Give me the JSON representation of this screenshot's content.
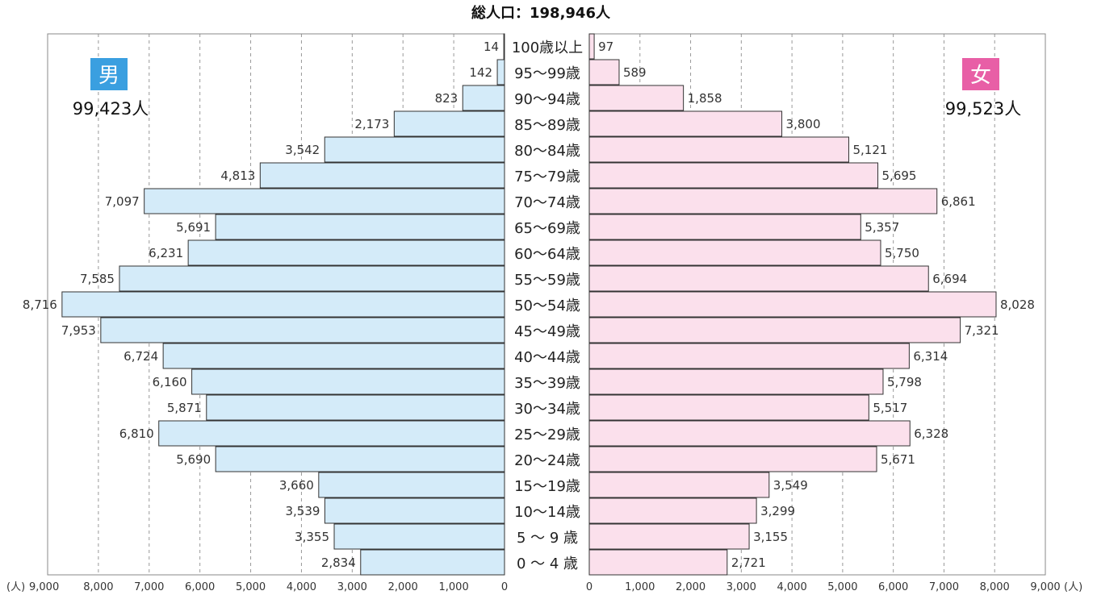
{
  "chart_data": {
    "type": "bar",
    "title": "総人口：198,946人",
    "unit": "(人)",
    "categories": [
      "100歳以上",
      "95～99歳",
      "90～94歳",
      "85～89歳",
      "80～84歳",
      "75～79歳",
      "70～74歳",
      "65～69歳",
      "60～64歳",
      "55～59歳",
      "50～54歳",
      "45～49歳",
      "40～44歳",
      "35～39歳",
      "30～34歳",
      "25～29歳",
      "20～24歳",
      "15～19歳",
      "10～14歳",
      "5 ～ 9 歳",
      "0 ～ 4 歳"
    ],
    "series": [
      {
        "name": "男",
        "total": "99,423人",
        "color": "#d4ebf9",
        "badge_color": "#3a9fe0",
        "values": [
          14,
          142,
          823,
          2173,
          3542,
          4813,
          7097,
          5691,
          6231,
          7585,
          8716,
          7953,
          6724,
          6160,
          5871,
          6810,
          5690,
          3660,
          3539,
          3355,
          2834
        ],
        "labels": [
          "14",
          "142",
          "823",
          "2,173",
          "3,542",
          "4,813",
          "7,097",
          "5,691",
          "6,231",
          "7,585",
          "8,716",
          "7,953",
          "6,724",
          "6,160",
          "5,871",
          "6,810",
          "5,690",
          "3,660",
          "3,539",
          "3,355",
          "2,834"
        ]
      },
      {
        "name": "女",
        "total": "99,523人",
        "color": "#fbe0ec",
        "badge_color": "#e85fa6",
        "values": [
          97,
          589,
          1858,
          3800,
          5121,
          5695,
          6861,
          5357,
          5750,
          6694,
          8028,
          7321,
          6314,
          5798,
          5517,
          6328,
          5671,
          3549,
          3299,
          3155,
          2721
        ],
        "labels": [
          "97",
          "589",
          "1,858",
          "3,800",
          "5,121",
          "5,695",
          "6,861",
          "5,357",
          "5,750",
          "6,694",
          "8,028",
          "7,321",
          "6,314",
          "5,798",
          "5,517",
          "6,328",
          "5,671",
          "3,549",
          "3,299",
          "3,155",
          "2,721"
        ]
      }
    ],
    "axis_max": 9000,
    "left_ticks": [
      "9,000",
      "8,000",
      "7,000",
      "6,000",
      "5,000",
      "4,000",
      "3,000",
      "2,000",
      "1,000",
      "0"
    ],
    "right_ticks": [
      "0",
      "1,000",
      "2,000",
      "3,000",
      "4,000",
      "5,000",
      "6,000",
      "7,000",
      "8,000",
      "9,000"
    ],
    "grid": "dashed-vertical"
  }
}
